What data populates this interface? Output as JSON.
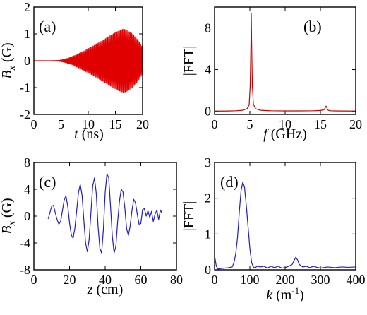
{
  "chart_data": [
    {
      "panel": "(a)",
      "type": "line",
      "xlabel": "t (ns)",
      "ylabel": "B_x (G)",
      "xlim": [
        0,
        20
      ],
      "ylim": [
        -2,
        2
      ],
      "xticks": [
        "0",
        "5",
        "10",
        "15",
        "20"
      ],
      "yticks": [
        "-2",
        "-1",
        "0",
        "1",
        "2"
      ],
      "color": "#e00000",
      "series": [
        {
          "description_free": true,
          "envelope": {
            "t": [
              0,
              2,
              3.5,
              4.5,
              5,
              6,
              7,
              8,
              9,
              10,
              11,
              12,
              13,
              14,
              15,
              16,
              16.5,
              17,
              18,
              19,
              20
            ],
            "amp": [
              0,
              0,
              0.005,
              0.015,
              0.03,
              0.08,
              0.15,
              0.24,
              0.34,
              0.45,
              0.56,
              0.68,
              0.8,
              0.93,
              1.05,
              1.15,
              1.18,
              1.15,
              1.02,
              0.8,
              0.5
            ]
          },
          "frequency_GHz": 5.2
        }
      ]
    },
    {
      "panel": "(b)",
      "type": "line",
      "xlabel": "f (GHz)",
      "ylabel": "|FFT|",
      "xlim": [
        0,
        20
      ],
      "ylim": [
        -0.3,
        10
      ],
      "xticks": [
        "0",
        "5",
        "10",
        "15",
        "20"
      ],
      "yticks": [
        "0",
        "4",
        "8"
      ],
      "color": "#c00000",
      "series": [
        {
          "x": [
            0,
            1,
            2,
            3,
            4,
            4.6,
            4.9,
            5.05,
            5.15,
            5.2,
            5.25,
            5.35,
            5.5,
            5.8,
            6.5,
            8,
            10,
            12,
            14,
            15,
            15.5,
            15.7,
            15.8,
            15.9,
            16.0,
            16.2,
            16.5,
            17,
            18,
            20
          ],
          "y": [
            0.02,
            0.02,
            0.03,
            0.05,
            0.1,
            0.25,
            0.6,
            2.5,
            6.5,
            9.4,
            6.8,
            2.5,
            0.7,
            0.25,
            0.1,
            0.05,
            0.04,
            0.04,
            0.05,
            0.08,
            0.15,
            0.35,
            0.5,
            0.35,
            0.15,
            0.08,
            0.05,
            0.04,
            0.03,
            0.02
          ]
        }
      ]
    },
    {
      "panel": "(c)",
      "type": "line",
      "xlabel": "z (cm)",
      "ylabel": "B_x (G)",
      "xlim": [
        0,
        80
      ],
      "ylim": [
        -8,
        8
      ],
      "xticks": [
        "0",
        "20",
        "40",
        "60",
        "80"
      ],
      "yticks": [
        "-8",
        "-4",
        "0",
        "4",
        "8"
      ],
      "color": "#1f1fbf",
      "series": [
        {
          "x": [
            8,
            9,
            10,
            11,
            12,
            13,
            14,
            15,
            16,
            17,
            18,
            19,
            20,
            21,
            22,
            23,
            24,
            25,
            26,
            27,
            28,
            29,
            30,
            31,
            32,
            33,
            34,
            35,
            36,
            37,
            38,
            39,
            40,
            41,
            42,
            43,
            44,
            45,
            46,
            47,
            48,
            49,
            50,
            51,
            52,
            53,
            54,
            55,
            56,
            57,
            58,
            59,
            60,
            61,
            62,
            63,
            64,
            65,
            66,
            67,
            68,
            69,
            70,
            71,
            72
          ],
          "y": [
            -0.4,
            0.5,
            1.5,
            1.6,
            0.5,
            -0.5,
            -1.2,
            -0.8,
            0.8,
            2.4,
            3.0,
            1.5,
            -1.0,
            -2.8,
            -3.3,
            -1.8,
            0.8,
            3.5,
            4.7,
            3.2,
            -0.5,
            -4.0,
            -5.3,
            -3.5,
            0.5,
            4.5,
            5.7,
            3.4,
            -1.5,
            -4.8,
            -5.5,
            -2.0,
            3.5,
            6.3,
            5.7,
            1.5,
            -3.0,
            -5.5,
            -4.5,
            -0.8,
            2.2,
            4.0,
            3.6,
            1.3,
            -1.8,
            -2.9,
            -1.5,
            0.8,
            2.5,
            2.0,
            0.3,
            -1.2,
            -1.1,
            1.0,
            1.1,
            0.0,
            0.8,
            -0.2,
            0.7,
            -0.8,
            0.3,
            0.9,
            -0.5,
            0.9,
            0.4
          ]
        }
      ]
    },
    {
      "panel": "(d)",
      "type": "line",
      "xlabel": "k (m⁻¹)",
      "ylabel": "|FFT|",
      "xlim": [
        0,
        400
      ],
      "ylim": [
        0,
        3
      ],
      "xticks": [
        "0",
        "100",
        "200",
        "300",
        "400"
      ],
      "yticks": [
        "0",
        "1",
        "2",
        "3"
      ],
      "color": "#1f1fbf",
      "series": [
        {
          "x": [
            0,
            5,
            10,
            20,
            30,
            40,
            50,
            55,
            60,
            65,
            70,
            75,
            80,
            85,
            90,
            95,
            100,
            105,
            110,
            115,
            120,
            130,
            140,
            150,
            160,
            170,
            180,
            190,
            200,
            210,
            220,
            225,
            230,
            235,
            240,
            250,
            260,
            270,
            280,
            290,
            300,
            320,
            340,
            360,
            380,
            400
          ],
          "y": [
            0.4,
            0.1,
            0.02,
            0.04,
            0.05,
            0.06,
            0.08,
            0.2,
            0.45,
            0.9,
            1.6,
            2.2,
            2.45,
            2.3,
            1.8,
            1.2,
            0.6,
            0.2,
            0.08,
            0.05,
            0.1,
            0.08,
            0.1,
            0.05,
            0.1,
            0.06,
            0.1,
            0.05,
            0.06,
            0.1,
            0.15,
            0.25,
            0.35,
            0.28,
            0.15,
            0.08,
            0.1,
            0.06,
            0.1,
            0.07,
            0.05,
            0.08,
            0.06,
            0.08,
            0.07,
            0.08
          ]
        }
      ]
    }
  ],
  "labels": {
    "a": {
      "panel": "(a)",
      "ylabel_main": "B",
      "ylabel_sub": "x",
      "ylabel_unit": "(G)",
      "xlabel_var": "t",
      "xlabel_unit": "(ns)"
    },
    "b": {
      "panel": "(b)",
      "ylabel": "|FFT|",
      "xlabel_var": "f",
      "xlabel_unit": "(GHz)"
    },
    "c": {
      "panel": "(c)",
      "ylabel_main": "B",
      "ylabel_sub": "x",
      "ylabel_unit": "(G)",
      "xlabel_var": "z",
      "xlabel_unit": "(cm)"
    },
    "d": {
      "panel": "(d)",
      "ylabel": "|FFT|",
      "xlabel_var": "k",
      "xlabel_unit": "(m",
      "xlabel_sup": "-1",
      "xlabel_close": ")"
    }
  }
}
